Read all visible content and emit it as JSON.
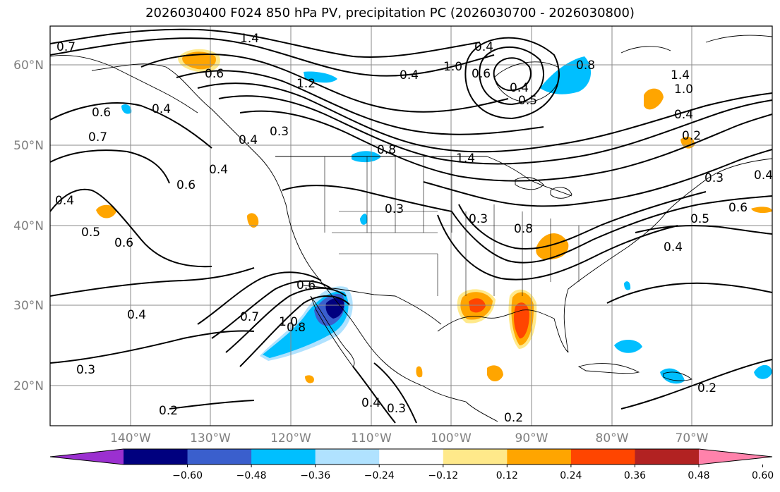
{
  "title": "2026030400 F024 850 hPa PV, precipitation PC (2026030700 - 2026030800)",
  "map": {
    "lon_labels": [
      "140°W",
      "130°W",
      "120°W",
      "110°W",
      "100°W",
      "90°W",
      "80°W",
      "70°W"
    ],
    "lat_labels": [
      "60°N",
      "50°N",
      "40°N",
      "30°N",
      "20°N"
    ],
    "contour_labels": [
      "0.7",
      "1.4",
      "0.6",
      "0.4",
      "0.6",
      "0.7",
      "0.4",
      "0.5",
      "0.6",
      "0.4",
      "0.6",
      "0.4",
      "0.3",
      "0.2",
      "0.3",
      "0.4",
      "1.2",
      "0.3",
      "0.4",
      "0.8",
      "1.4",
      "0.3",
      "0.7",
      "0.6",
      "0.8",
      "1.0",
      "0.8",
      "0.4",
      "0.3",
      "1.0",
      "0.4",
      "0.5",
      "0.6",
      "0.4",
      "0.8",
      "1.4",
      "1.0",
      "0.4",
      "0.2",
      "0.3",
      "0.4",
      "0.5",
      "0.6",
      "0.4",
      "0.2",
      "0.2"
    ]
  },
  "colorbar": {
    "labels": [
      "−0.60",
      "−0.48",
      "−0.36",
      "−0.24",
      "−0.12",
      "0.12",
      "0.24",
      "0.36",
      "0.48",
      "0.60"
    ],
    "colors": [
      "#9b30d0",
      "#00007f",
      "#3a5fcd",
      "#00bfff",
      "#b0e2ff",
      "#ffffff",
      "#ffe98a",
      "#ffa500",
      "#ff4500",
      "#b22222",
      "#ff82ab"
    ]
  }
}
